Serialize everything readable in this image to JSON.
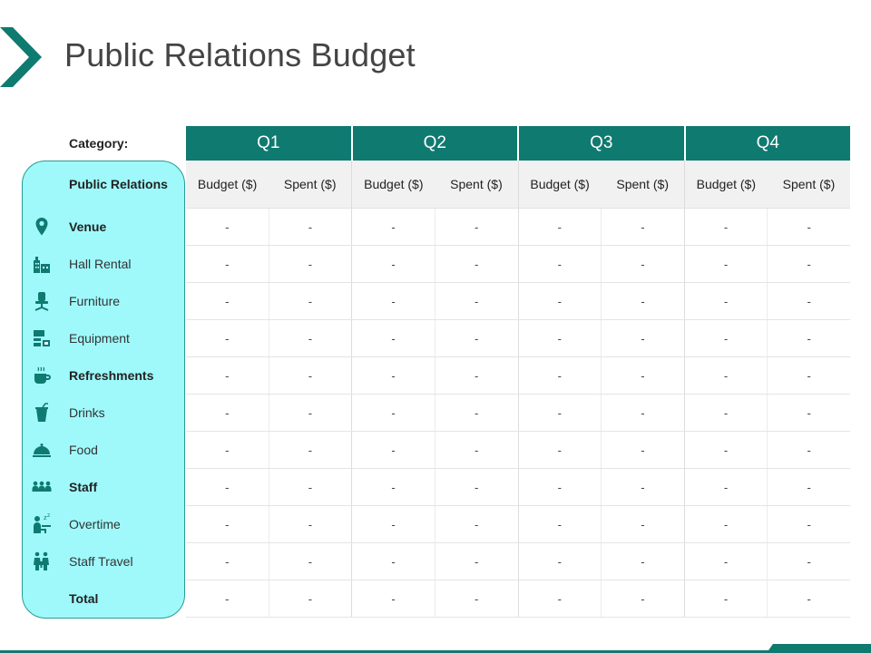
{
  "title": "Public Relations Budget",
  "category_label": "Category:",
  "quarters": [
    "Q1",
    "Q2",
    "Q3",
    "Q4"
  ],
  "sub_headers": {
    "budget": "Budget ($)",
    "spent": "Spent ($)"
  },
  "left_header": "Public Relations",
  "rows": [
    {
      "label": "Venue",
      "bold": true,
      "icon": "location-pin-icon"
    },
    {
      "label": "Hall Rental",
      "bold": false,
      "icon": "building-icon"
    },
    {
      "label": "Furniture",
      "bold": false,
      "icon": "office-chair-icon"
    },
    {
      "label": "Equipment",
      "bold": false,
      "icon": "equipment-icon"
    },
    {
      "label": "Refreshments",
      "bold": true,
      "icon": "hot-cup-icon"
    },
    {
      "label": "Drinks",
      "bold": false,
      "icon": "drink-cup-icon"
    },
    {
      "label": "Food",
      "bold": false,
      "icon": "food-cloche-icon"
    },
    {
      "label": "Staff",
      "bold": true,
      "icon": "people-group-icon"
    },
    {
      "label": "Overtime",
      "bold": false,
      "icon": "sleeping-worker-icon"
    },
    {
      "label": "Staff Travel",
      "bold": false,
      "icon": "travelers-icon"
    },
    {
      "label": "Total",
      "bold": true,
      "icon": ""
    }
  ],
  "cell_value": "-",
  "colors": {
    "accent": "#0f7a70",
    "panel": "#9ff9fb",
    "panel_border": "#2a9a92"
  }
}
